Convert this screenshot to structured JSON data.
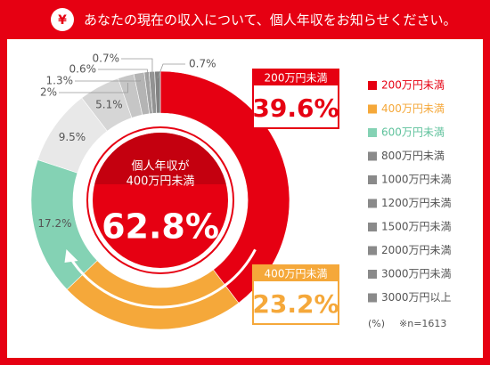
{
  "header": {
    "icon": "¥",
    "title": "あなたの現在の収入について、個人年収をお知らせください。"
  },
  "chart_data": {
    "type": "donut",
    "categories": [
      "200万円未満",
      "400万円未満",
      "600万円未満",
      "800万円未満",
      "1000万円未満",
      "1200万円未満",
      "1500万円未満",
      "2000万円未満",
      "3000万円未満",
      "3000万円以上"
    ],
    "series": [
      {
        "values": [
          39.6,
          23.2,
          17.2,
          9.5,
          5.1,
          2,
          1.3,
          0.6,
          0.7,
          0.7
        ],
        "value_labels": [
          "39.6%",
          "23.2%",
          "17.2%",
          "9.5%",
          "5.1%",
          "2%",
          "1.3%",
          "0.6%",
          "0.7%",
          "0.7%"
        ],
        "colors": [
          "#e60012",
          "#f5a83a",
          "#84d2b4",
          "#e8e8e8",
          "#d6d6d6",
          "#c6c6c6",
          "#b4b4b4",
          "#a2a2a2",
          "#929292",
          "#828282"
        ]
      }
    ],
    "summary": {
      "lines": [
        "個人年収が",
        "400万円未満"
      ],
      "value": 62.8,
      "value_label": "62.8%"
    },
    "unit_note": "(%)",
    "sample_note": "※n=1613",
    "legend": "right"
  }
}
